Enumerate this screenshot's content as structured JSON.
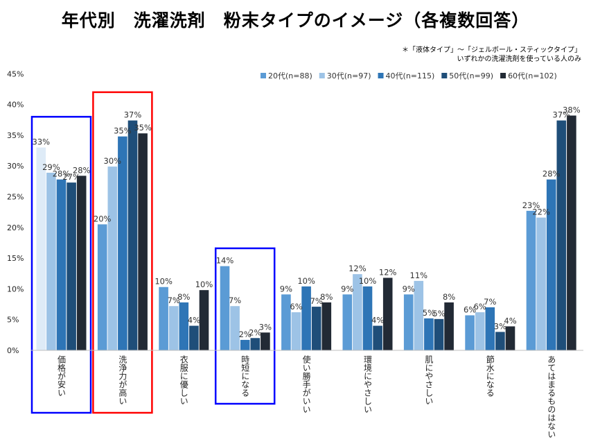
{
  "title": "年代別　洗濯洗剤　粉末タイプのイメージ（各複数回答）",
  "notes": [
    "＊「液体タイプ」～「ジェルボール・スティックタイプ」",
    "いずれかの洗濯洗剤を使っている人のみ"
  ],
  "chart_data": {
    "type": "bar",
    "title": "年代別　洗濯洗剤　粉末タイプのイメージ（各複数回答）",
    "categories": [
      "価格が安い",
      "洗浄力が高い",
      "衣服に優しい",
      "時短になる",
      "使い勝手がいい",
      "環境にやさしい",
      "肌にやさしい",
      "節水になる",
      "あてはまるものはない"
    ],
    "series": [
      {
        "name": "20代(n=88)",
        "color": "#5b9bd5",
        "values": [
          33,
          20,
          10,
          14,
          9,
          9,
          9,
          6,
          23
        ]
      },
      {
        "name": "30代(n=97)",
        "color": "#9dc3e6",
        "values": [
          29,
          30,
          7,
          7,
          6,
          12,
          11,
          6,
          22
        ]
      },
      {
        "name": "40代(n=115)",
        "color": "#2e75b6",
        "values": [
          28,
          35,
          8,
          2,
          10,
          10,
          5,
          7,
          28
        ]
      },
      {
        "name": "50代(n=99)",
        "color": "#1f4e79",
        "values": [
          27,
          37,
          4,
          2,
          7,
          4,
          5,
          3,
          37
        ]
      },
      {
        "name": "60代(n=102)",
        "color": "#222a35",
        "values": [
          28,
          35,
          10,
          3,
          8,
          12,
          8,
          4,
          38
        ]
      }
    ],
    "first_bar_override": {
      "category_index": 0,
      "series_index": 0,
      "color": "#deebf7"
    },
    "bar_heights": [
      [
        33,
        20.5,
        10.3,
        13.7,
        9.1,
        9.1,
        9.1,
        5.7,
        22.7
      ],
      [
        28.9,
        29.9,
        7.2,
        7.2,
        6.2,
        12.4,
        11.3,
        6.2,
        21.6
      ],
      [
        27.8,
        34.8,
        7.8,
        1.7,
        10.4,
        10.4,
        5.2,
        7,
        27.8
      ],
      [
        27.3,
        37.4,
        4,
        2,
        7.1,
        4,
        5.1,
        3,
        37.4
      ],
      [
        28.4,
        35.3,
        9.8,
        2.9,
        7.8,
        11.8,
        7.8,
        3.9,
        38.2
      ]
    ],
    "value_suffix": "%",
    "y_ticks": [
      "0%",
      "5%",
      "10%",
      "15%",
      "20%",
      "25%",
      "30%",
      "35%",
      "40%",
      "45%"
    ],
    "ylim": [
      0,
      45
    ],
    "grid": false,
    "legend_position": "top-right",
    "highlight_boxes": [
      {
        "category_index": 0,
        "color": "#0000ff"
      },
      {
        "category_index": 1,
        "color": "#ff0000"
      },
      {
        "category_index": 3,
        "color": "#0000ff"
      }
    ]
  }
}
